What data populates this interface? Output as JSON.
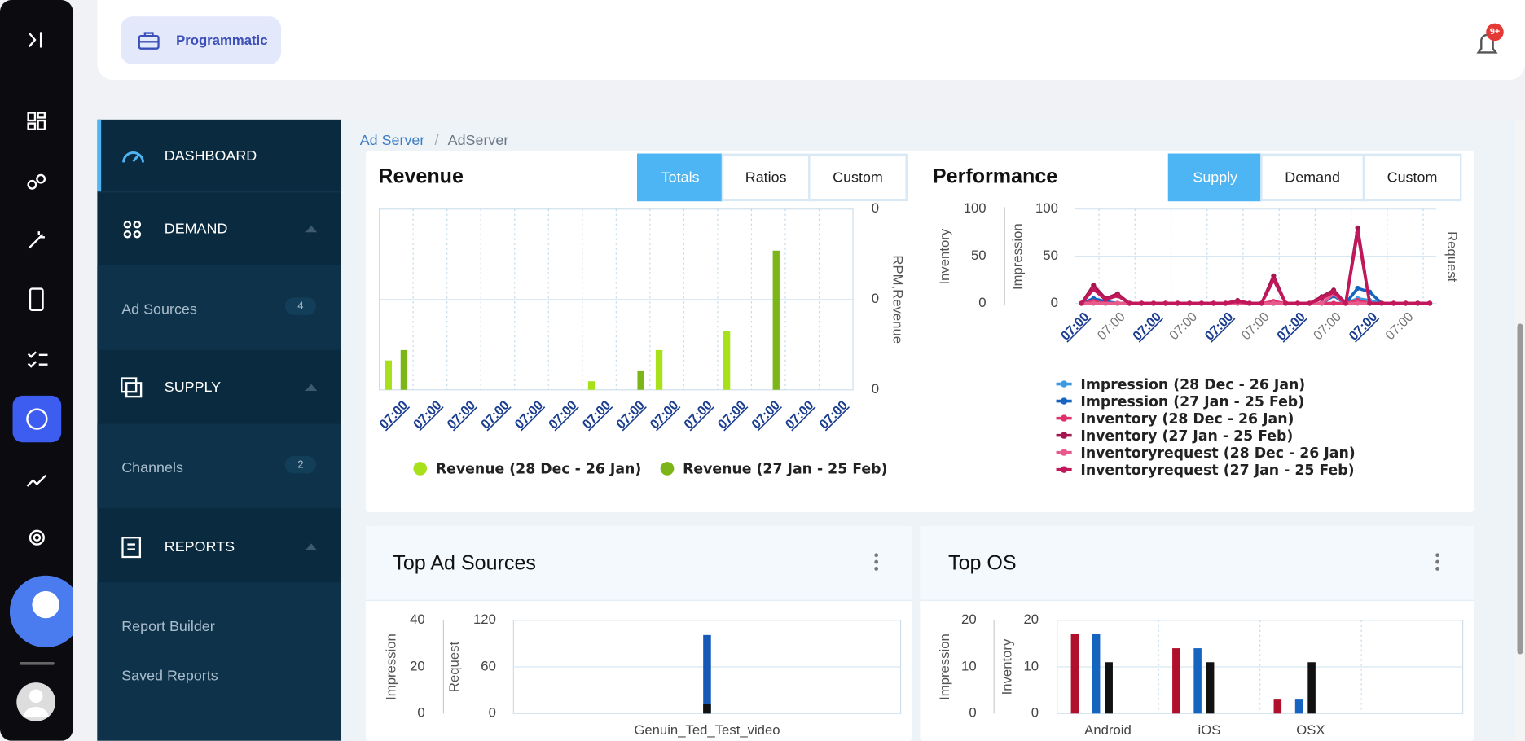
{
  "header": {
    "workspace": "Programmatic",
    "notification_badge": "9+"
  },
  "sidebar": {
    "dashboard": "DASHBOARD",
    "demand": "DEMAND",
    "ad_sources": {
      "label": "Ad Sources",
      "count": 4
    },
    "supply": "SUPPLY",
    "channels": {
      "label": "Channels",
      "count": 2
    },
    "reports": "REPORTS",
    "report_builder": "Report Builder",
    "saved_reports": "Saved Reports"
  },
  "breadcrumb": [
    "Ad Server",
    "AdServer"
  ],
  "revenue_tabs": [
    "Totals",
    "Ratios",
    "Custom"
  ],
  "performance_tabs": [
    "Supply",
    "Demand",
    "Custom"
  ],
  "cards": {
    "top_ad_sources": "Top Ad Sources",
    "top_os": "Top OS"
  },
  "chart_data": [
    {
      "type": "bar",
      "title": "Revenue",
      "y_label": "RPM,Revenue",
      "categories": [
        "07:00",
        "07:00",
        "07:00",
        "07:00",
        "07:00",
        "07:00",
        "07:00",
        "07:00",
        "07:00",
        "07:00",
        "07:00",
        "07:00",
        "07:00",
        "07:00"
      ],
      "series": [
        {
          "name": "Revenue (28 Dec - 26 Jan)",
          "color": "#a8e01b",
          "values": [
            0.065,
            0,
            0,
            0,
            0,
            0,
            0.019,
            0,
            0.088,
            0,
            0.131,
            0,
            0,
            0
          ]
        },
        {
          "name": "Revenue (27 Jan - 25 Feb)",
          "color": "#7cb518",
          "values": [
            0.088,
            0,
            0,
            0,
            0,
            0,
            0,
            0.043,
            0,
            0,
            0,
            0.308,
            0,
            0
          ]
        }
      ],
      "ylim": [
        0,
        0.4
      ],
      "yticks": [
        0,
        {
          "value": 0.2,
          "label": "0"
        },
        {
          "value": 0.4,
          "label": "0"
        }
      ],
      "grid": true
    },
    {
      "type": "line",
      "title": "Performance",
      "y_label": "Inventory",
      "y2_label": "Impression",
      "y3_label": "Request",
      "categories": [
        "07:00",
        null,
        null,
        "07:00",
        null,
        null,
        "07:00",
        null,
        null,
        "07:00",
        null,
        null,
        "07:00",
        null,
        null,
        "07:00",
        null,
        null,
        "07:00",
        null,
        null,
        "07:00",
        null,
        null,
        "07:00",
        null,
        null,
        "07:00",
        null,
        null
      ],
      "series": [
        {
          "name": "Impression (28 Dec - 26 Jan)",
          "color": "#3b9ae1",
          "axis": "y2",
          "values": [
            0,
            3,
            0,
            0,
            0,
            0,
            0,
            0,
            0,
            0,
            0,
            0,
            0,
            0,
            0,
            0,
            0,
            0,
            0,
            0,
            0,
            0,
            0,
            5,
            3,
            0,
            0,
            0,
            0,
            0
          ]
        },
        {
          "name": "Impression (27 Jan - 25 Feb)",
          "color": "#1565c0",
          "axis": "y2",
          "values": [
            0,
            5,
            2,
            0,
            0,
            0,
            0,
            0,
            0,
            0,
            0,
            0,
            0,
            0,
            0,
            0,
            0,
            0,
            0,
            0,
            0,
            8,
            0,
            16,
            12,
            0,
            0,
            0,
            0,
            0
          ]
        },
        {
          "name": "Inventory (28 Dec - 26 Jan)",
          "color": "#e0306a",
          "values": [
            0,
            2,
            0,
            0,
            0,
            0,
            0,
            0,
            0,
            0,
            0,
            0,
            0,
            0,
            0,
            0,
            2,
            0,
            0,
            0,
            0,
            0,
            0,
            3,
            0,
            0,
            0,
            0,
            0,
            0
          ]
        },
        {
          "name": "Inventory (27 Jan - 25 Feb)",
          "color": "#a3164f",
          "values": [
            0,
            19,
            5,
            10,
            0,
            0,
            0,
            0,
            0,
            0,
            0,
            0,
            0,
            3,
            0,
            0,
            29,
            0,
            0,
            0,
            7,
            14,
            0,
            80,
            0,
            0,
            0,
            0,
            0,
            0
          ]
        },
        {
          "name": "Inventoryrequest (28 Dec - 26 Jan)",
          "color": "#e85a8c",
          "values": [
            0,
            0,
            0,
            0,
            0,
            0,
            0,
            0,
            0,
            0,
            0,
            0,
            0,
            0,
            0,
            0,
            0,
            0,
            0,
            0,
            0,
            10,
            0,
            0,
            0,
            0,
            0,
            0,
            0,
            0
          ]
        },
        {
          "name": "Inventoryrequest (27 Jan - 25 Feb)",
          "color": "#c2185b",
          "values": [
            0,
            15,
            4,
            8,
            0,
            0,
            0,
            0,
            0,
            0,
            0,
            0,
            0,
            2,
            0,
            0,
            25,
            0,
            0,
            0,
            5,
            12,
            0,
            75,
            0,
            0,
            0,
            0,
            0,
            0
          ]
        }
      ],
      "ylim": [
        0,
        100
      ],
      "yticks": [
        0,
        50,
        100
      ],
      "y2lim": [
        0,
        100
      ],
      "y2ticks": [
        0,
        50,
        100
      ],
      "grid": true
    },
    {
      "type": "bar",
      "y_label": "Impression",
      "y2_label": "Request",
      "categories": [
        "Genuin_Ted_Test_video"
      ],
      "series": [
        {
          "color": "#1558b8",
          "axis": "y2",
          "values": [
            101
          ]
        },
        {
          "color": "#111111",
          "values": [
            4
          ]
        }
      ],
      "ylim": [
        0,
        40
      ],
      "yticks": [
        0,
        20,
        40
      ],
      "y2lim": [
        0,
        120
      ],
      "y2ticks": [
        0,
        60,
        120
      ],
      "grid": true
    },
    {
      "type": "bar",
      "y_label": "Impression",
      "y2_label": "Inventory",
      "categories": [
        "Android",
        "iOS",
        "OSX",
        null
      ],
      "series": [
        {
          "color": "#b0102b",
          "values": [
            17,
            14,
            3,
            null
          ]
        },
        {
          "color": "#1565c0",
          "values": [
            17,
            14,
            3,
            null
          ]
        },
        {
          "color": "#111111",
          "axis": "y2",
          "values": [
            11,
            11,
            11,
            null
          ]
        }
      ],
      "ylim": [
        0,
        20
      ],
      "yticks": [
        0,
        10,
        20
      ],
      "y2lim": [
        0,
        20
      ],
      "y2ticks": [
        0,
        10,
        20
      ],
      "grid": true
    }
  ]
}
